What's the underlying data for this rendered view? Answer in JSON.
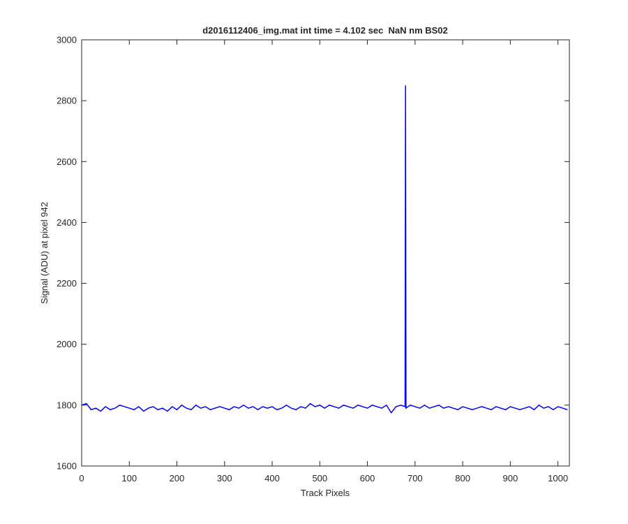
{
  "chart_data": {
    "type": "line",
    "title": "d2016112406_img.mat int time = 4.102 sec  NaN nm BS02",
    "x_label": "Track Pixels",
    "y_label": "Signal (ADU) at pixel 942",
    "xlim": [
      0,
      1024
    ],
    "xticks": [
      0,
      100,
      200,
      300,
      400,
      500,
      600,
      700,
      800,
      900,
      1000
    ],
    "ylim": [
      1600,
      3000
    ],
    "yticks": [
      1600,
      1800,
      2000,
      2200,
      2400,
      2600,
      2800,
      3000
    ],
    "grid": false,
    "x": [
      0,
      10,
      20,
      30,
      40,
      50,
      60,
      70,
      80,
      90,
      100,
      110,
      120,
      130,
      140,
      150,
      160,
      170,
      180,
      190,
      200,
      210,
      220,
      230,
      240,
      250,
      260,
      270,
      280,
      290,
      300,
      310,
      320,
      330,
      340,
      350,
      360,
      370,
      380,
      390,
      400,
      410,
      420,
      430,
      440,
      450,
      460,
      470,
      480,
      490,
      500,
      510,
      520,
      530,
      540,
      550,
      560,
      570,
      580,
      590,
      600,
      610,
      620,
      630,
      640,
      650,
      660,
      670,
      679,
      680,
      681,
      690,
      700,
      710,
      720,
      730,
      740,
      750,
      760,
      770,
      780,
      790,
      800,
      810,
      820,
      830,
      840,
      850,
      860,
      870,
      880,
      890,
      900,
      910,
      920,
      930,
      940,
      950,
      960,
      970,
      980,
      990,
      1000,
      1010,
      1020
    ],
    "series": [
      {
        "color": "#0000ff",
        "values": [
          1800,
          1805,
          1785,
          1790,
          1780,
          1795,
          1785,
          1790,
          1800,
          1795,
          1790,
          1785,
          1795,
          1780,
          1790,
          1795,
          1785,
          1790,
          1780,
          1795,
          1785,
          1800,
          1790,
          1785,
          1800,
          1790,
          1795,
          1785,
          1790,
          1795,
          1790,
          1785,
          1795,
          1790,
          1800,
          1790,
          1795,
          1785,
          1795,
          1790,
          1795,
          1785,
          1790,
          1800,
          1790,
          1785,
          1795,
          1790,
          1805,
          1795,
          1800,
          1790,
          1800,
          1795,
          1790,
          1800,
          1795,
          1790,
          1800,
          1795,
          1790,
          1800,
          1795,
          1790,
          1800,
          1775,
          1795,
          1800,
          1795,
          2850,
          1790,
          1800,
          1795,
          1790,
          1800,
          1790,
          1795,
          1800,
          1790,
          1795,
          1790,
          1785,
          1795,
          1790,
          1785,
          1790,
          1795,
          1790,
          1785,
          1795,
          1790,
          1785,
          1795,
          1790,
          1785,
          1790,
          1795,
          1785,
          1800,
          1790,
          1795,
          1785,
          1795,
          1790,
          1785
        ]
      }
    ]
  }
}
